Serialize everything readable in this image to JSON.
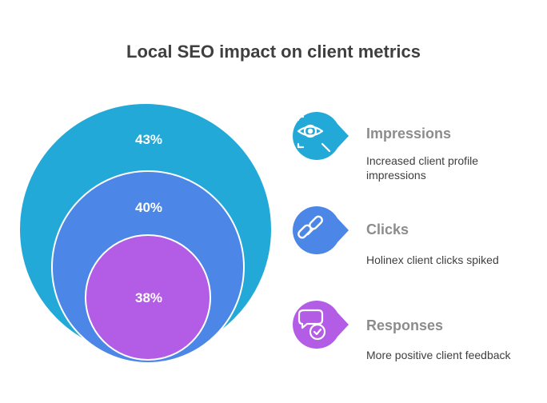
{
  "title": "Local SEO impact on client metrics",
  "colors": {
    "impressions": "#22a9d8",
    "clicks": "#4c86e6",
    "responses": "#b35de6",
    "title": "#3f3f3f",
    "item_title": "#8c8c8c"
  },
  "circles": [
    {
      "label": "43%",
      "value": 43
    },
    {
      "label": "40%",
      "value": 40
    },
    {
      "label": "38%",
      "value": 38
    }
  ],
  "items": [
    {
      "title": "Impressions",
      "description": "Increased client profile impressions",
      "icon": "eye-magnifier-icon"
    },
    {
      "title": "Clicks",
      "description": "Holinex client clicks spiked",
      "icon": "chain-link-icon"
    },
    {
      "title": "Responses",
      "description": "More positive client feedback",
      "icon": "speech-bubble-check-icon"
    }
  ]
}
